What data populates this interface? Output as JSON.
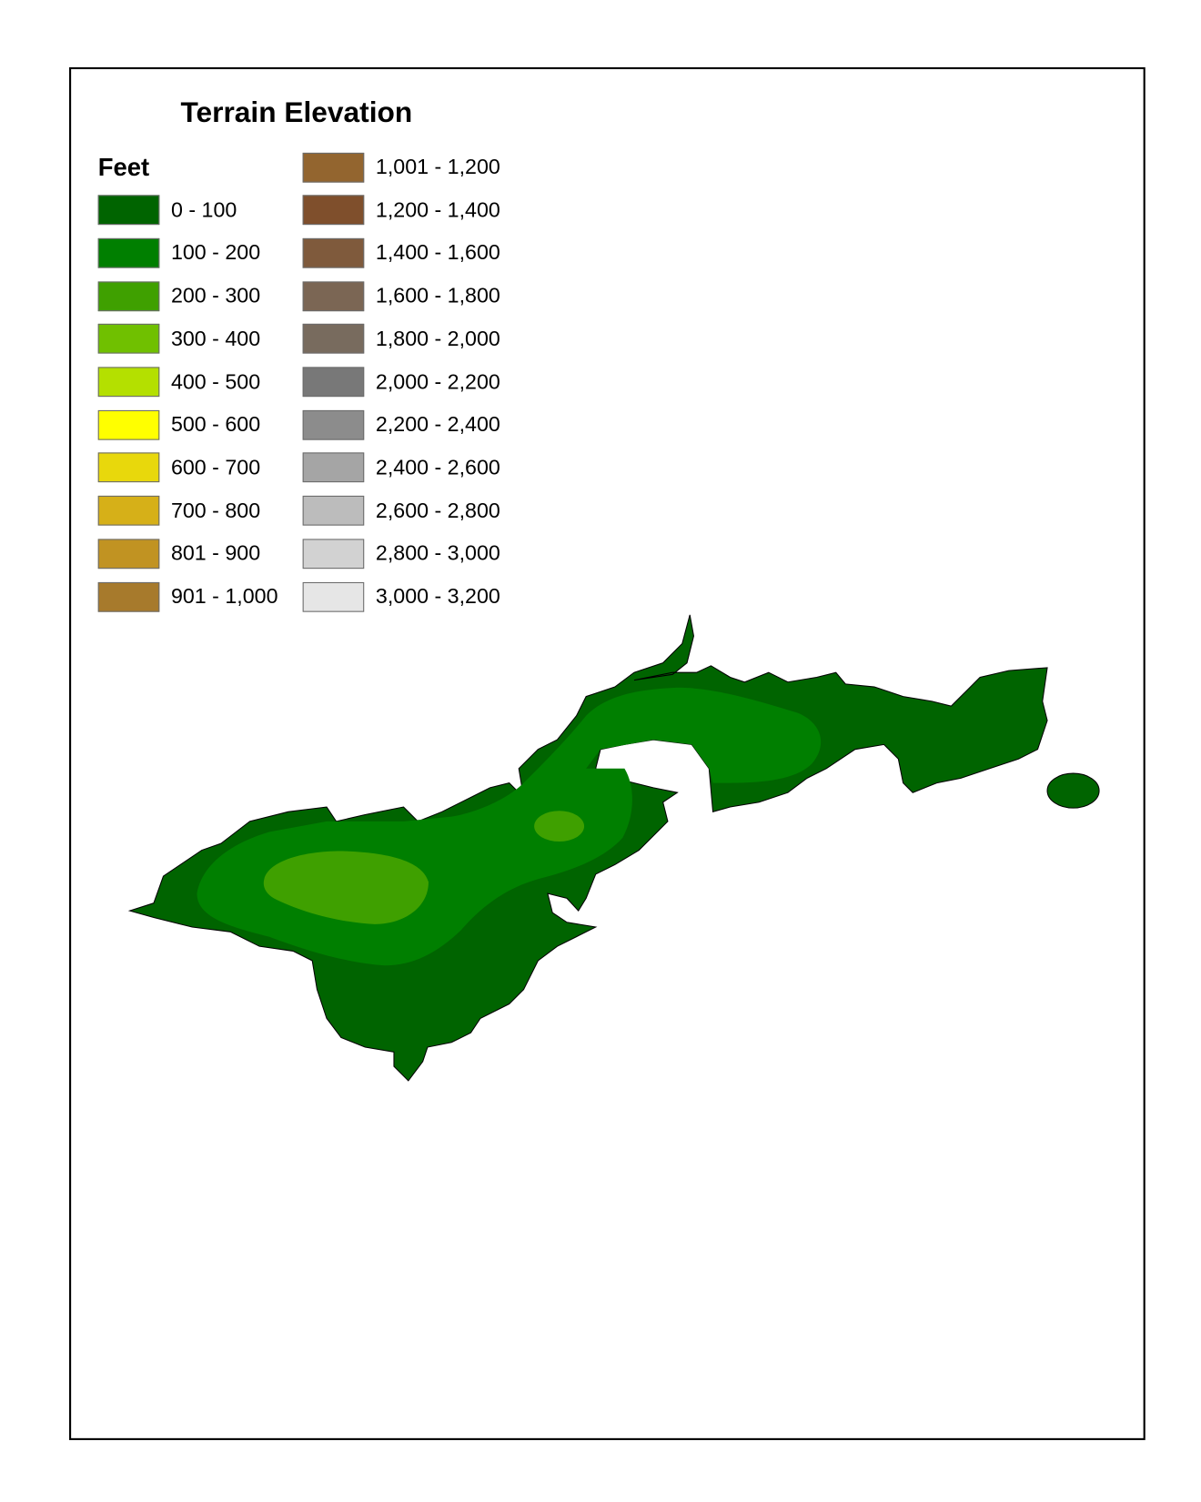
{
  "legend": {
    "title": "Terrain Elevation",
    "unit": "Feet",
    "classes": [
      {
        "label": "0 - 100",
        "color": "#006400"
      },
      {
        "label": "100 - 200",
        "color": "#007f00"
      },
      {
        "label": "200 - 300",
        "color": "#3fa000"
      },
      {
        "label": "300 - 400",
        "color": "#70c000"
      },
      {
        "label": "400 - 500",
        "color": "#b4e000"
      },
      {
        "label": "500 - 600",
        "color": "#ffff00"
      },
      {
        "label": "600 - 700",
        "color": "#e8d80c"
      },
      {
        "label": "700 - 800",
        "color": "#d6b018"
      },
      {
        "label": "801 - 900",
        "color": "#c19322"
      },
      {
        "label": "901 - 1,000",
        "color": "#a77a2c"
      },
      {
        "label": "1,001 - 1,200",
        "color": "#93652f"
      },
      {
        "label": "1,200 - 1,400",
        "color": "#7f4f2c"
      },
      {
        "label": "1,400 - 1,600",
        "color": "#7f5a3c"
      },
      {
        "label": "1,600 - 1,800",
        "color": "#7b6654"
      },
      {
        "label": "1,800 - 2,000",
        "color": "#786b5e"
      },
      {
        "label": "2,000 - 2,200",
        "color": "#787878"
      },
      {
        "label": "2,200 - 2,400",
        "color": "#8c8c8c"
      },
      {
        "label": "2,400 - 2,600",
        "color": "#a5a5a5"
      },
      {
        "label": "2,600 - 2,800",
        "color": "#bcbcbc"
      },
      {
        "label": "2,800 - 3,000",
        "color": "#d2d2d2"
      },
      {
        "label": "3,000 - 3,200",
        "color": "#e6e6e6"
      }
    ]
  },
  "map": {
    "zones_shown": [
      "0 - 100",
      "100 - 200",
      "200 - 300"
    ]
  }
}
